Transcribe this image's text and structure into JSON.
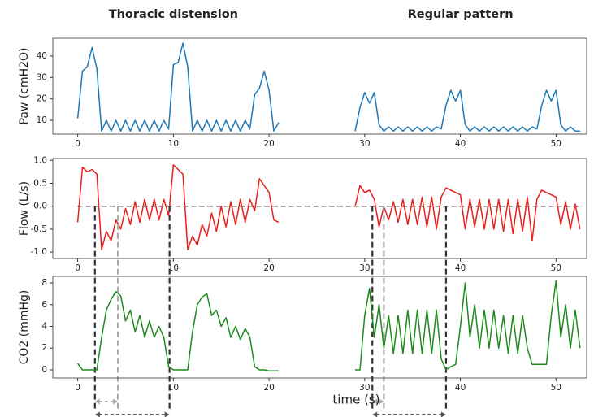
{
  "chart_data": [
    {
      "type": "line",
      "ylabel": "Paw (cmH2O)",
      "annotations": [
        "Thoracic distension",
        "Regular pattern"
      ],
      "xlim": [
        -2.6,
        53.2
      ],
      "ylim": [
        3.6,
        48.3
      ],
      "xticks": [
        0,
        10,
        20,
        30,
        40,
        50
      ],
      "yticks": [
        10,
        20,
        30,
        40
      ],
      "x": [
        0,
        0.5,
        1,
        1.5,
        2,
        2.5,
        3,
        3.5,
        4,
        4.5,
        5,
        5.5,
        6,
        6.5,
        7,
        7.5,
        8,
        8.5,
        9,
        9.5,
        10,
        10.5,
        11,
        11.5,
        12,
        12.5,
        13,
        13.5,
        14,
        14.5,
        15,
        15.5,
        16,
        16.5,
        17,
        17.5,
        18,
        18.5,
        19,
        19.5,
        20,
        20.5,
        21,
        25,
        29,
        29.5,
        30,
        30.5,
        31,
        31.5,
        32,
        32.5,
        33,
        33.5,
        34,
        34.5,
        35,
        35.5,
        36,
        36.5,
        37,
        37.5,
        38,
        38.5,
        39,
        39.5,
        40,
        40.5,
        41,
        41.5,
        42,
        42.5,
        43,
        43.5,
        44,
        44.5,
        45,
        45.5,
        46,
        46.5,
        47,
        47.5,
        48,
        48.5,
        49,
        49.5,
        50,
        50.5,
        51,
        51.5,
        52,
        52.5
      ],
      "series": [
        {
          "color": "#1f77b4",
          "values": [
            11,
            33,
            35,
            44,
            34,
            5,
            10,
            5,
            10,
            5,
            10,
            5,
            10,
            5,
            10,
            5,
            10,
            5,
            10,
            6,
            36,
            37,
            46,
            35,
            5,
            10,
            5,
            10,
            5,
            10,
            5,
            10,
            5,
            10,
            5,
            10,
            6,
            22,
            25,
            33,
            24,
            5,
            9,
            null,
            5,
            16,
            23,
            18,
            23,
            8,
            5,
            7,
            5,
            7,
            5,
            7,
            5,
            7,
            5,
            7,
            5,
            7,
            6,
            17,
            24,
            19,
            24,
            8,
            5,
            7,
            5,
            7,
            5,
            7,
            5,
            7,
            5,
            7,
            5,
            7,
            5,
            7,
            6,
            17,
            24,
            19,
            24,
            8,
            5,
            7,
            5,
            5
          ]
        }
      ]
    },
    {
      "type": "line",
      "ylabel": "Flow (L/s)",
      "xlim": [
        -2.6,
        53.2
      ],
      "ylim": [
        -1.14,
        1.04
      ],
      "xticks": [
        0,
        10,
        20,
        30,
        40,
        50
      ],
      "yticks": [
        {
          "value": -1.0,
          "label": "-1.0"
        },
        -0.5,
        {
          "value": 0.0,
          "label": "0.0"
        },
        0.5,
        {
          "value": 1.0,
          "label": "1.0"
        }
      ],
      "hline": 0,
      "markers": [
        {
          "x": 1.8,
          "color": "#333"
        },
        {
          "x": 4.2,
          "color": "#aaa"
        },
        {
          "x": 9.6,
          "color": "#333"
        },
        {
          "x": 30.8,
          "color": "#333"
        },
        {
          "x": 32,
          "color": "#aaa"
        },
        {
          "x": 38.5,
          "color": "#333"
        }
      ],
      "intervals": [
        {
          "start": 1.8,
          "end": 4.2,
          "color": "#aaa"
        },
        {
          "start": 1.8,
          "end": 9.6,
          "color": "#555"
        },
        {
          "start": 30.8,
          "end": 32,
          "color": "#aaa"
        },
        {
          "start": 30.8,
          "end": 38.5,
          "color": "#555"
        }
      ],
      "x": [
        0,
        0.5,
        1,
        1.5,
        2,
        2.5,
        3,
        3.5,
        4,
        4.5,
        5,
        5.5,
        6,
        6.5,
        7,
        7.5,
        8,
        8.5,
        9,
        9.5,
        10,
        10.5,
        11,
        11.5,
        12,
        12.5,
        13,
        13.5,
        14,
        14.5,
        15,
        15.5,
        16,
        16.5,
        17,
        17.5,
        18,
        18.5,
        19,
        19.5,
        20,
        20.5,
        21,
        25,
        29,
        29.5,
        30,
        30.5,
        31,
        31.5,
        32,
        32.5,
        33,
        33.5,
        34,
        34.5,
        35,
        35.5,
        36,
        36.5,
        37,
        37.5,
        38,
        38.5,
        39,
        39.5,
        40,
        40.5,
        41,
        41.5,
        42,
        42.5,
        43,
        43.5,
        44,
        44.5,
        45,
        45.5,
        46,
        46.5,
        47,
        47.5,
        48,
        48.5,
        49,
        49.5,
        50,
        50.5,
        51,
        51.5,
        52,
        52.5
      ],
      "series": [
        {
          "color": "#e8201c",
          "values": [
            -0.35,
            0.85,
            0.75,
            0.8,
            0.7,
            -0.95,
            -0.55,
            -0.75,
            -0.3,
            -0.5,
            -0.05,
            -0.4,
            0.1,
            -0.35,
            0.15,
            -0.3,
            0.15,
            -0.3,
            0.15,
            -0.2,
            0.9,
            0.8,
            0.7,
            -0.95,
            -0.65,
            -0.85,
            -0.4,
            -0.65,
            -0.15,
            -0.55,
            0,
            -0.45,
            0.1,
            -0.4,
            0.15,
            -0.35,
            0.15,
            -0.1,
            0.6,
            0.45,
            0.3,
            -0.3,
            -0.35,
            null,
            0,
            0.45,
            0.3,
            0.35,
            0.15,
            -0.45,
            0,
            -0.3,
            0.1,
            -0.35,
            0.15,
            -0.4,
            0.15,
            -0.4,
            0.2,
            -0.45,
            0.2,
            -0.5,
            0.2,
            0.4,
            0.35,
            0.3,
            0.25,
            -0.5,
            0.15,
            -0.45,
            0.15,
            -0.5,
            0.15,
            -0.5,
            0.15,
            -0.55,
            0.15,
            -0.6,
            0.15,
            -0.55,
            0.2,
            -0.75,
            0.15,
            0.35,
            0.3,
            0.25,
            0.2,
            -0.4,
            0.1,
            -0.5,
            0.05,
            -0.5
          ]
        }
      ]
    },
    {
      "type": "line",
      "ylabel": "CO2 (mmHg)",
      "xlabel": "time (s)",
      "xlim": [
        -2.6,
        53.2
      ],
      "ylim": [
        -0.75,
        8.6
      ],
      "xticks": [
        0,
        10,
        20,
        30,
        40,
        50
      ],
      "yticks": [
        0,
        2,
        4,
        6,
        8
      ],
      "x": [
        0,
        0.5,
        1,
        1.5,
        2,
        2.5,
        3,
        3.5,
        4,
        4.5,
        5,
        5.5,
        6,
        6.5,
        7,
        7.5,
        8,
        8.5,
        9,
        9.5,
        10,
        10.5,
        11,
        11.5,
        12,
        12.5,
        13,
        13.5,
        14,
        14.5,
        15,
        15.5,
        16,
        16.5,
        17,
        17.5,
        18,
        18.5,
        19,
        19.5,
        20,
        20.5,
        21,
        25,
        29,
        29.5,
        30,
        30.5,
        31,
        31.5,
        32,
        32.5,
        33,
        33.5,
        34,
        34.5,
        35,
        35.5,
        36,
        36.5,
        37,
        37.5,
        38,
        38.5,
        39,
        39.5,
        40,
        40.5,
        41,
        41.5,
        42,
        42.5,
        43,
        43.5,
        44,
        44.5,
        45,
        45.5,
        46,
        46.5,
        47,
        47.5,
        48,
        48.5,
        49,
        49.5,
        50,
        50.5,
        51,
        51.5,
        52,
        52.5
      ],
      "series": [
        {
          "color": "#1e8a1e",
          "values": [
            0.6,
            0,
            0,
            0,
            0,
            3,
            5.5,
            6.5,
            7.2,
            6.8,
            4.5,
            5.5,
            3.5,
            5,
            3,
            4.5,
            3,
            4,
            3,
            0.3,
            0,
            0,
            0,
            0,
            3.5,
            6,
            6.7,
            7,
            5,
            5.5,
            4,
            4.8,
            3,
            4,
            2.8,
            3.8,
            3,
            0.3,
            0,
            0,
            -0.1,
            -0.1,
            -0.1,
            null,
            0,
            0,
            5,
            7.5,
            3,
            6,
            2,
            5,
            1.5,
            5,
            1.5,
            5.5,
            1.5,
            5.5,
            1.5,
            5.5,
            1.5,
            5.5,
            1,
            0,
            0.3,
            0.5,
            4,
            8,
            3,
            6,
            2,
            5.5,
            2,
            5.5,
            2,
            5,
            1.5,
            5,
            1.5,
            5,
            2,
            0.5,
            0.5,
            0.5,
            0.5,
            5,
            8.2,
            3,
            6,
            2,
            5.5,
            2
          ]
        }
      ]
    }
  ]
}
